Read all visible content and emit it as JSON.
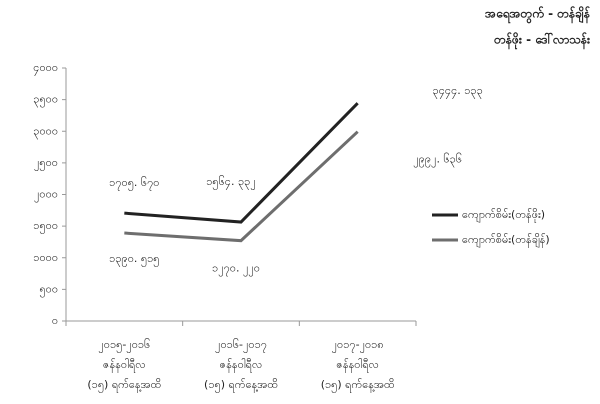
{
  "chart_data": {
    "type": "line",
    "title": [
      "အရေအတွက် - တန်ချိန်",
      "တန်ဖိုး - ဒေါ်လာသန်း"
    ],
    "categories": [
      [
        "၂၀၁၅-၂၀၁၆",
        "ဇန်နဝါရီလ",
        "(၁၅) ရက်နေ့အထိ"
      ],
      [
        "၂၀၁၆-၂၀၁၇",
        "ဇန်နဝါရီလ",
        "(၁၅) ရက်နေ့အထိ"
      ],
      [
        "၂၀၁၇-၂၀၁၈",
        "ဇန်နဝါရီလ",
        "(၁၅) ရက်နေ့အထိ"
      ]
    ],
    "series": [
      {
        "name": "ကျောက်စိမ်း(တန်ဖိုး)",
        "color": "#222222",
        "values": [
          1705.67,
          1564.332,
          3444.133
        ],
        "value_labels": [
          "၁၇၀၅. ၆၇၀",
          "၁၅၆၄. ၃၃၂",
          "၃၄၄၄. ၁၃၃"
        ]
      },
      {
        "name": "ကျောက်စိမ်း(တန်ချိန်)",
        "color": "#6e6e6e",
        "values": [
          1390.515,
          1270.22,
          2992.636
        ],
        "value_labels": [
          "၁၃၉၀. ၅၁၅",
          "၁၂၇၀. ၂၂၀",
          "၂၉၉၂. ၆၃၆"
        ]
      }
    ],
    "ylim": [
      0,
      4000
    ],
    "yticks": [
      {
        "value": 0,
        "label": "၀"
      },
      {
        "value": 500,
        "label": "၅၀၀"
      },
      {
        "value": 1000,
        "label": "၁၀၀၀"
      },
      {
        "value": 1500,
        "label": "၁၅၀၀"
      },
      {
        "value": 2000,
        "label": "၂၀၀၀"
      },
      {
        "value": 2500,
        "label": "၂၅၀၀"
      },
      {
        "value": 3000,
        "label": "၃၀၀၀"
      },
      {
        "value": 3500,
        "label": "၃၅၀၀"
      },
      {
        "value": 4000,
        "label": "၄၀၀၀"
      }
    ],
    "grid": false,
    "legend": "right"
  }
}
